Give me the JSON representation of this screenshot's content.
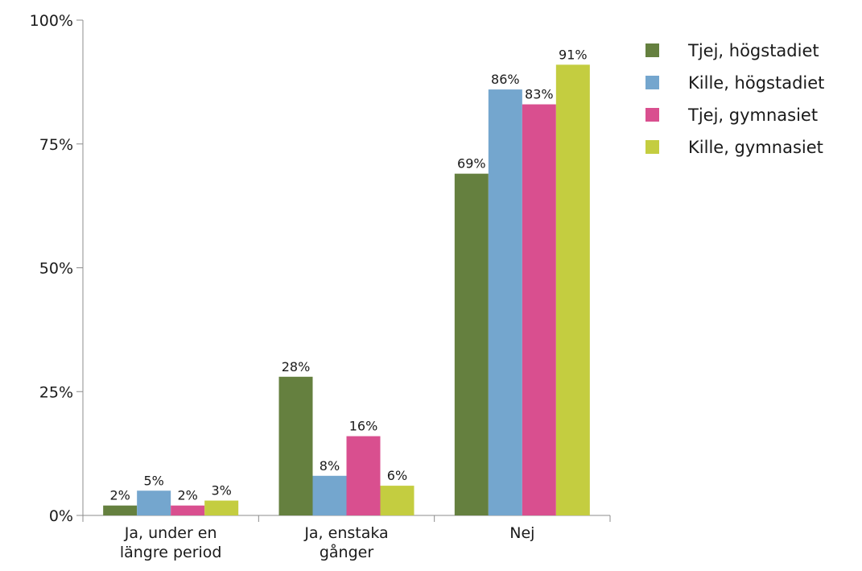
{
  "chart_data": {
    "type": "bar",
    "categories": [
      [
        "Ja, under en",
        "längre period"
      ],
      [
        "Ja, enstaka",
        "gånger"
      ],
      [
        "Nej"
      ]
    ],
    "series": [
      {
        "name": "Tjej, högstadiet",
        "color": "#65803f",
        "values": [
          2,
          28,
          69
        ]
      },
      {
        "name": "Kille, högstadiet",
        "color": "#74a6ce",
        "values": [
          5,
          8,
          86
        ]
      },
      {
        "name": "Tjej, gymnasiet",
        "color": "#d94f8f",
        "values": [
          2,
          16,
          83
        ]
      },
      {
        "name": "Kille, gymnasiet",
        "color": "#c4cd40",
        "values": [
          3,
          6,
          91
        ]
      }
    ],
    "value_suffix": "%",
    "ylim": [
      0,
      100
    ],
    "yticks": [
      0,
      25,
      50,
      75,
      100
    ],
    "ytick_labels": [
      "0%",
      "25%",
      "50%",
      "75%",
      "100%"
    ],
    "legend_position": "top-right",
    "grid": false
  }
}
